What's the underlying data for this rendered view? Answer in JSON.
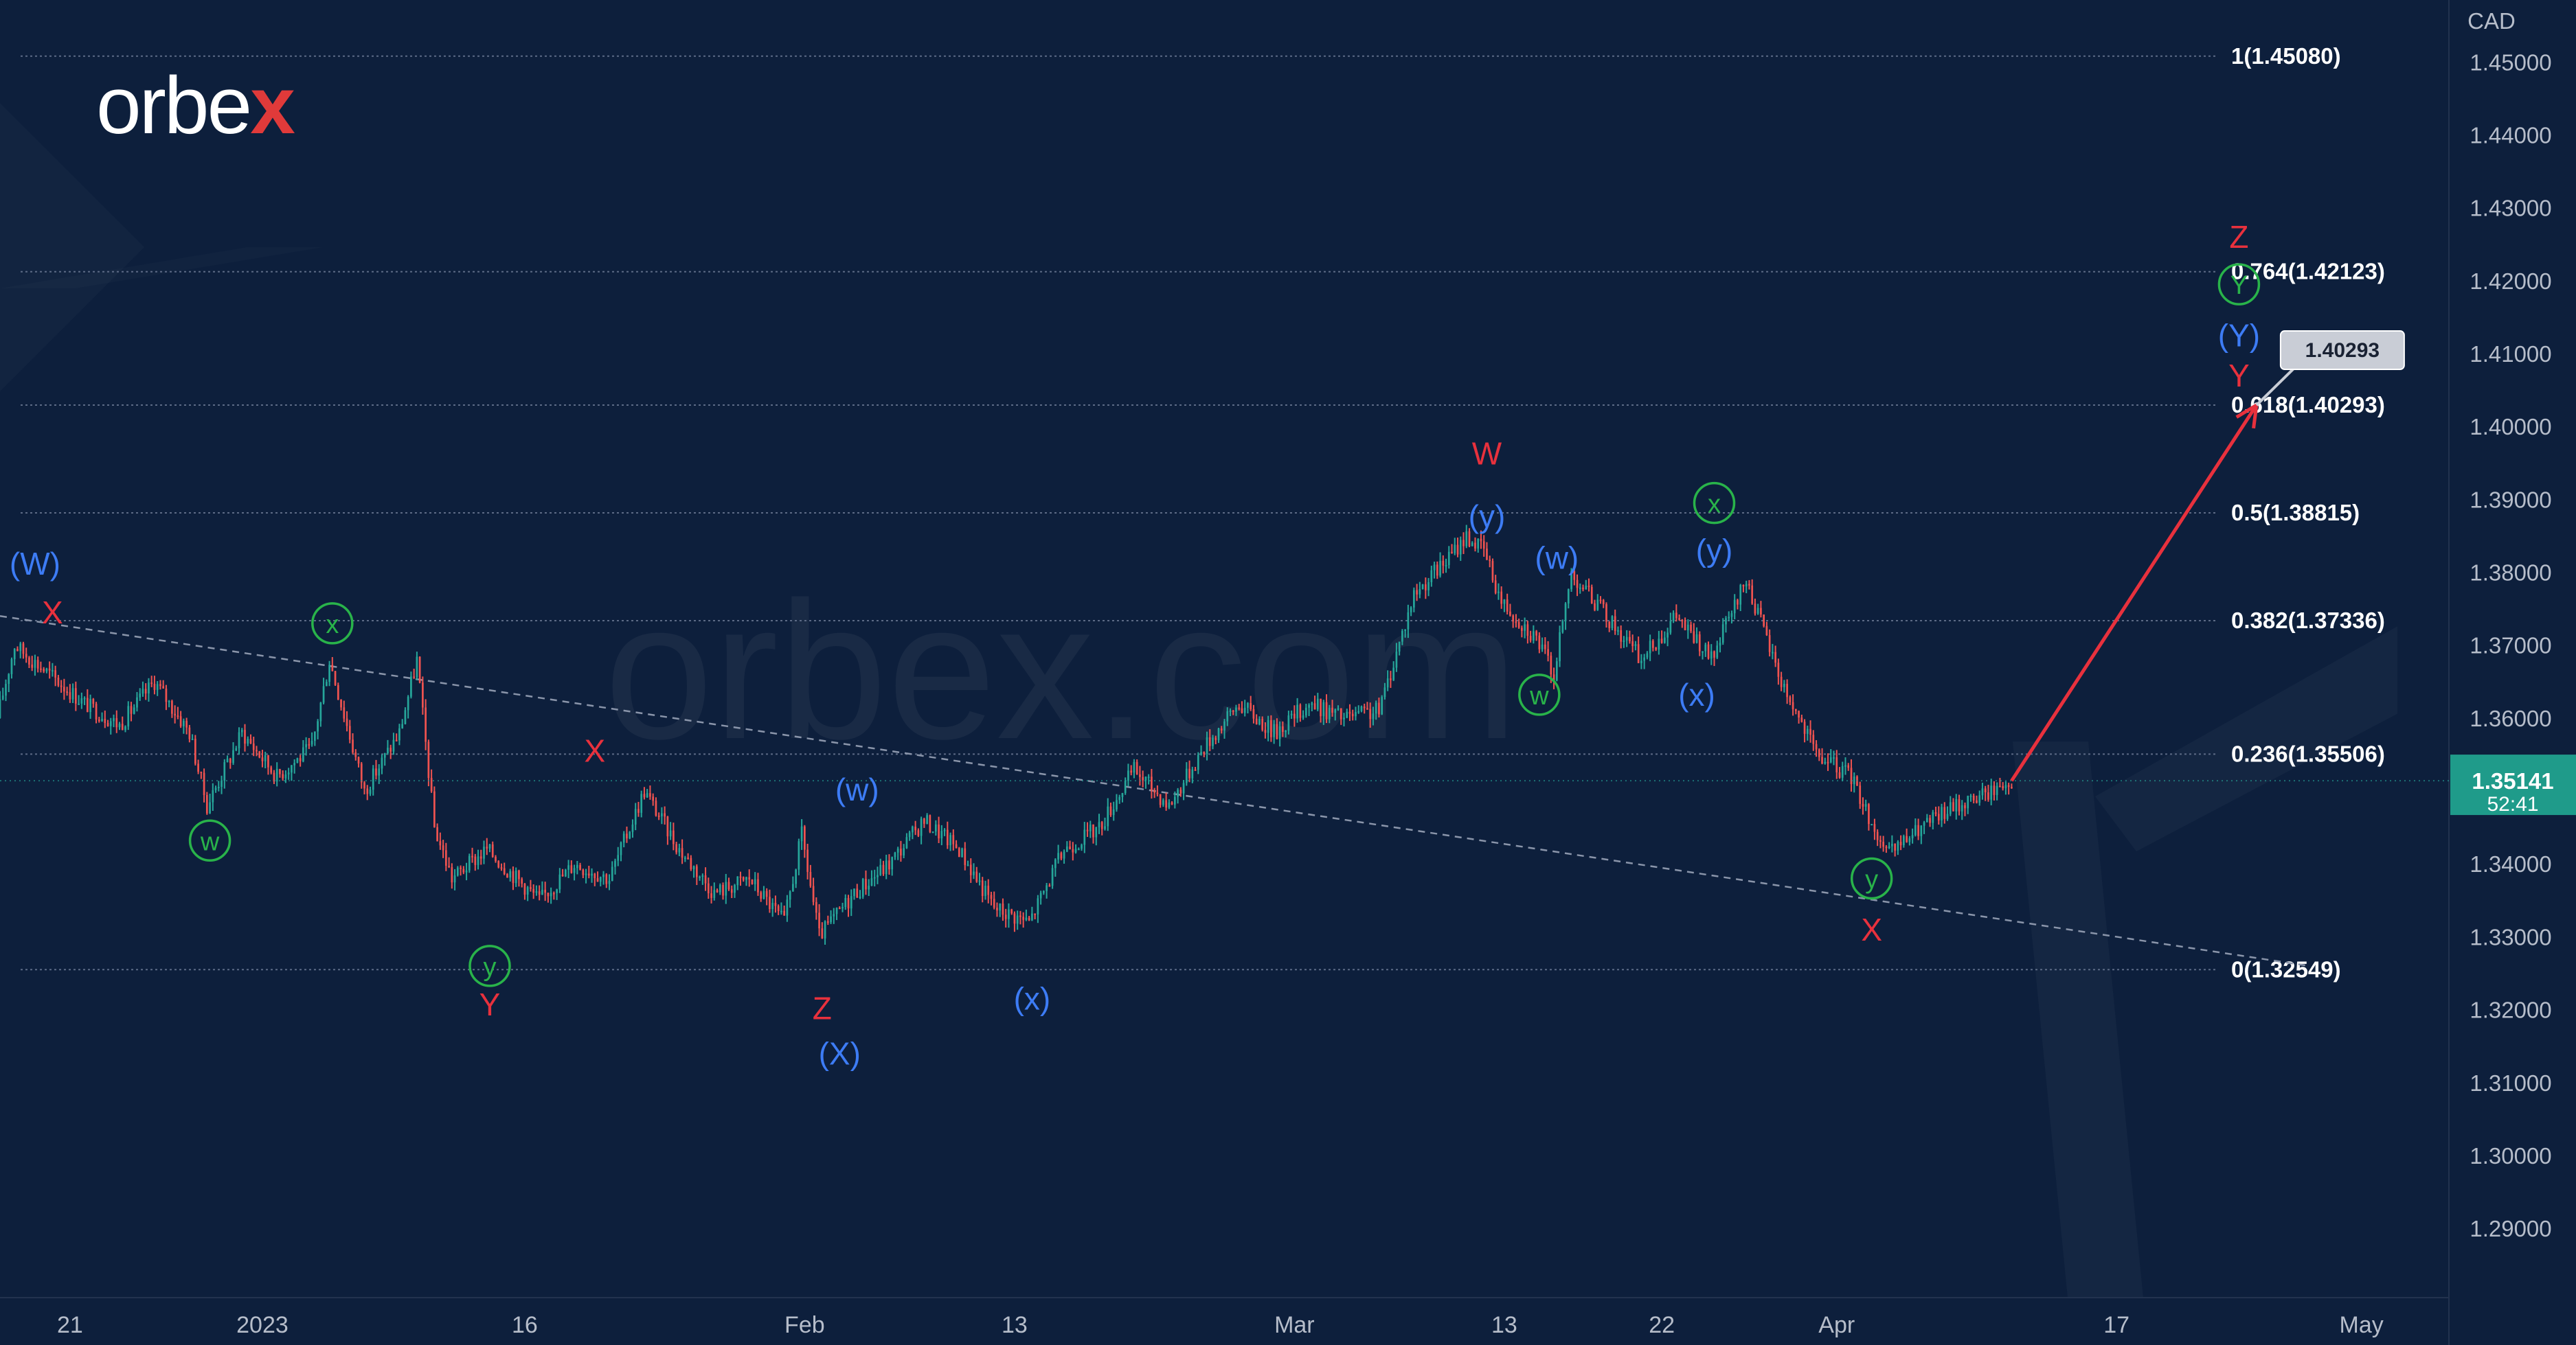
{
  "brand": {
    "logo_text": "orbe",
    "logo_x": "x",
    "watermark": "orbex.com"
  },
  "colors": {
    "background": "#0d1f3c",
    "bull": "#26a69a",
    "bear": "#ef5350",
    "red_label": "#e8313d",
    "blue_label": "#3d7cf5",
    "green_label": "#29b34a",
    "price_badge": "#1f9b8a",
    "fib_line": "#5d6b86"
  },
  "chart_data": {
    "type": "candlestick",
    "y_axis": {
      "label": "CAD",
      "ylim": [
        1.2805,
        1.4585
      ],
      "ticks": [
        "1.45000",
        "1.44000",
        "1.43000",
        "1.42000",
        "1.41000",
        "1.40000",
        "1.39000",
        "1.38000",
        "1.37000",
        "1.36000",
        "1.35000",
        "1.34000",
        "1.33000",
        "1.32000",
        "1.31000",
        "1.30000",
        "1.29000"
      ],
      "current_price": "1.35141",
      "countdown": "52:41"
    },
    "x_axis": {
      "range": [
        "2022-12-17",
        "2023-05-06"
      ],
      "ticks": [
        {
          "label": "21",
          "date": "2022-12-21"
        },
        {
          "label": "2023",
          "date": "2023-01-01"
        },
        {
          "label": "16",
          "date": "2023-01-16"
        },
        {
          "label": "Feb",
          "date": "2023-02-01"
        },
        {
          "label": "13",
          "date": "2023-02-13"
        },
        {
          "label": "Mar",
          "date": "2023-03-01"
        },
        {
          "label": "13",
          "date": "2023-03-13"
        },
        {
          "label": "22",
          "date": "2023-03-22"
        },
        {
          "label": "Apr",
          "date": "2023-04-01"
        },
        {
          "label": "17",
          "date": "2023-04-17"
        },
        {
          "label": "May",
          "date": "2023-05-01"
        }
      ]
    },
    "fib_levels": [
      {
        "label": "1(1.45080)",
        "value": 1.4508
      },
      {
        "label": "0.764(1.42123)",
        "value": 1.42123
      },
      {
        "label": "0.618(1.40293)",
        "value": 1.40293
      },
      {
        "label": "0.5(1.38815)",
        "value": 1.38815
      },
      {
        "label": "0.382(1.37336)",
        "value": 1.37336
      },
      {
        "label": "0.236(1.35506)",
        "value": 1.35506
      },
      {
        "label": "0(1.32549)",
        "value": 1.32549
      }
    ],
    "price_path": [
      {
        "date": "2022-12-17",
        "price": 1.36
      },
      {
        "date": "2022-12-18",
        "price": 1.37
      },
      {
        "date": "2022-12-20",
        "price": 1.366
      },
      {
        "date": "2022-12-22",
        "price": 1.362
      },
      {
        "date": "2022-12-24",
        "price": 1.359
      },
      {
        "date": "2022-12-26",
        "price": 1.365
      },
      {
        "date": "2022-12-28",
        "price": 1.358
      },
      {
        "date": "2022-12-29",
        "price": 1.348
      },
      {
        "date": "2022-12-31",
        "price": 1.358
      },
      {
        "date": "2023-01-02",
        "price": 1.352
      },
      {
        "date": "2023-01-04",
        "price": 1.356
      },
      {
        "date": "2023-01-05",
        "price": 1.368
      },
      {
        "date": "2023-01-07",
        "price": 1.35
      },
      {
        "date": "2023-01-09",
        "price": 1.358
      },
      {
        "date": "2023-01-10",
        "price": 1.368
      },
      {
        "date": "2023-01-11",
        "price": 1.345
      },
      {
        "date": "2023-01-12",
        "price": 1.338
      },
      {
        "date": "2023-01-14",
        "price": 1.342
      },
      {
        "date": "2023-01-17",
        "price": 1.335
      },
      {
        "date": "2023-01-19",
        "price": 1.34
      },
      {
        "date": "2023-01-21",
        "price": 1.338
      },
      {
        "date": "2023-01-23",
        "price": 1.35
      },
      {
        "date": "2023-01-25",
        "price": 1.342
      },
      {
        "date": "2023-01-27",
        "price": 1.336
      },
      {
        "date": "2023-01-29",
        "price": 1.338
      },
      {
        "date": "2023-01-31",
        "price": 1.332
      },
      {
        "date": "2023-02-01",
        "price": 1.344
      },
      {
        "date": "2023-02-02",
        "price": 1.33
      },
      {
        "date": "2023-02-04",
        "price": 1.336
      },
      {
        "date": "2023-02-06",
        "price": 1.34
      },
      {
        "date": "2023-02-08",
        "price": 1.346
      },
      {
        "date": "2023-02-10",
        "price": 1.342
      },
      {
        "date": "2023-02-12",
        "price": 1.334
      },
      {
        "date": "2023-02-14",
        "price": 1.332
      },
      {
        "date": "2023-02-16",
        "price": 1.342
      },
      {
        "date": "2023-02-18",
        "price": 1.345
      },
      {
        "date": "2023-02-20",
        "price": 1.353
      },
      {
        "date": "2023-02-22",
        "price": 1.348
      },
      {
        "date": "2023-02-24",
        "price": 1.356
      },
      {
        "date": "2023-02-26",
        "price": 1.362
      },
      {
        "date": "2023-02-28",
        "price": 1.358
      },
      {
        "date": "2023-03-02",
        "price": 1.362
      },
      {
        "date": "2023-03-04",
        "price": 1.36
      },
      {
        "date": "2023-03-06",
        "price": 1.361
      },
      {
        "date": "2023-03-08",
        "price": 1.377
      },
      {
        "date": "2023-03-10",
        "price": 1.382
      },
      {
        "date": "2023-03-11",
        "price": 1.385
      },
      {
        "date": "2023-03-12",
        "price": 1.383
      },
      {
        "date": "2023-03-13",
        "price": 1.376
      },
      {
        "date": "2023-03-15",
        "price": 1.371
      },
      {
        "date": "2023-03-16",
        "price": 1.366
      },
      {
        "date": "2023-03-17",
        "price": 1.38
      },
      {
        "date": "2023-03-19",
        "price": 1.374
      },
      {
        "date": "2023-03-21",
        "price": 1.368
      },
      {
        "date": "2023-03-23",
        "price": 1.374
      },
      {
        "date": "2023-03-25",
        "price": 1.368
      },
      {
        "date": "2023-03-27",
        "price": 1.379
      },
      {
        "date": "2023-03-29",
        "price": 1.365
      },
      {
        "date": "2023-03-31",
        "price": 1.355
      },
      {
        "date": "2023-04-02",
        "price": 1.352
      },
      {
        "date": "2023-04-04",
        "price": 1.341
      },
      {
        "date": "2023-04-06",
        "price": 1.345
      },
      {
        "date": "2023-04-08",
        "price": 1.348
      },
      {
        "date": "2023-04-10",
        "price": 1.35
      },
      {
        "date": "2023-04-11",
        "price": 1.3514
      }
    ],
    "projection": {
      "start": {
        "date": "2023-04-11",
        "price": 1.3514
      },
      "end": {
        "date": "2023-04-25",
        "price": 1.40293
      },
      "badge": "1.40293"
    },
    "trendline": {
      "start": {
        "date": "2022-12-17",
        "price": 1.374
      },
      "end": {
        "date": "2023-04-28",
        "price": 1.326
      }
    },
    "wave_labels": [
      {
        "text": "(W)",
        "color": "blue",
        "date": "2022-12-19",
        "price": 1.3812,
        "circled": false
      },
      {
        "text": "X",
        "color": "red",
        "date": "2022-12-20",
        "price": 1.3745,
        "circled": false
      },
      {
        "text": "w",
        "color": "green",
        "date": "2022-12-29",
        "price": 1.3432,
        "circled": true
      },
      {
        "text": "x",
        "color": "green",
        "date": "2023-01-05",
        "price": 1.373,
        "circled": true
      },
      {
        "text": "y",
        "color": "green",
        "date": "2023-01-14",
        "price": 1.326,
        "circled": true
      },
      {
        "text": "Y",
        "color": "red",
        "date": "2023-01-14",
        "price": 1.3207,
        "circled": false
      },
      {
        "text": "X",
        "color": "red",
        "date": "2023-01-20",
        "price": 1.3555,
        "circled": false
      },
      {
        "text": "(w)",
        "color": "blue",
        "date": "2023-02-04",
        "price": 1.3502,
        "circled": false
      },
      {
        "text": "Z",
        "color": "red",
        "date": "2023-02-02",
        "price": 1.3202,
        "circled": false
      },
      {
        "text": "(X)",
        "color": "blue",
        "date": "2023-02-03",
        "price": 1.314,
        "circled": false
      },
      {
        "text": "(x)",
        "color": "blue",
        "date": "2023-02-14",
        "price": 1.3215,
        "circled": false
      },
      {
        "text": "W",
        "color": "red",
        "date": "2023-03-12",
        "price": 1.3963,
        "circled": false
      },
      {
        "text": "(y)",
        "color": "blue",
        "date": "2023-03-12",
        "price": 1.3877,
        "circled": false
      },
      {
        "text": "(w)",
        "color": "blue",
        "date": "2023-03-16",
        "price": 1.382,
        "circled": false
      },
      {
        "text": "w",
        "color": "green",
        "date": "2023-03-15",
        "price": 1.3632,
        "circled": true
      },
      {
        "text": "x",
        "color": "green",
        "date": "2023-03-25",
        "price": 1.3895,
        "circled": true
      },
      {
        "text": "(y)",
        "color": "blue",
        "date": "2023-03-25",
        "price": 1.383,
        "circled": false
      },
      {
        "text": "(x)",
        "color": "blue",
        "date": "2023-03-24",
        "price": 1.3632,
        "circled": false
      },
      {
        "text": "y",
        "color": "green",
        "date": "2023-04-03",
        "price": 1.338,
        "circled": true
      },
      {
        "text": "X",
        "color": "red",
        "date": "2023-04-03",
        "price": 1.331,
        "circled": false
      },
      {
        "text": "Z",
        "color": "red",
        "date": "2023-04-24",
        "price": 1.426,
        "circled": false
      },
      {
        "text": "Y",
        "color": "green",
        "date": "2023-04-24",
        "price": 1.4195,
        "circled": true
      },
      {
        "text": "(Y)",
        "color": "blue",
        "date": "2023-04-24",
        "price": 1.4125,
        "circled": false
      },
      {
        "text": "Y",
        "color": "red",
        "date": "2023-04-24",
        "price": 1.407,
        "circled": false
      }
    ]
  }
}
